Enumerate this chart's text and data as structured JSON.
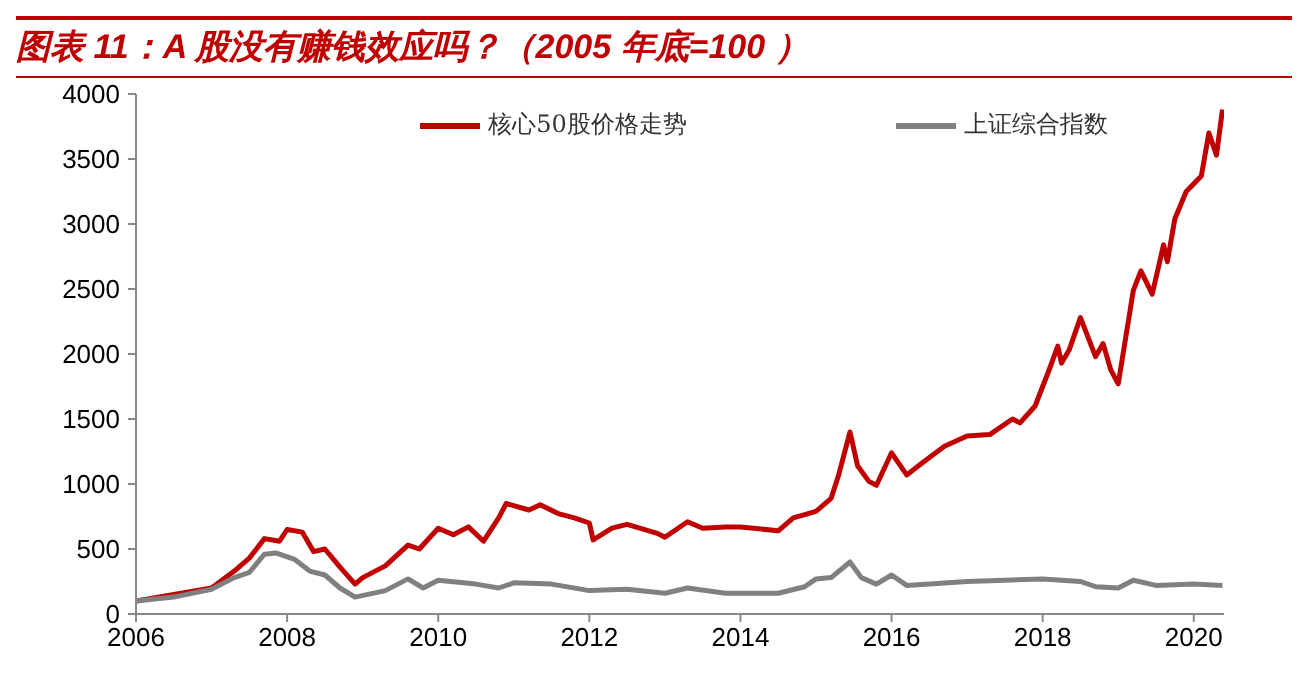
{
  "chart_data": {
    "type": "line",
    "title": "图表 11：A 股没有赚钱效应吗？（2005 年底=100 ）",
    "xlim": [
      2006,
      2020.4
    ],
    "xticks": [
      2006,
      2008,
      2010,
      2012,
      2014,
      2016,
      2018,
      2020
    ],
    "ylim": [
      0,
      4000
    ],
    "yticks": [
      0,
      500,
      1000,
      1500,
      2000,
      2500,
      3000,
      3500,
      4000
    ],
    "legend": "top",
    "grid": false,
    "marker": "none",
    "line_style": "solid",
    "series": [
      {
        "name": "核心50股价格走势",
        "color": "#c00000",
        "x": [
          2006,
          2006.5,
          2007,
          2007.3,
          2007.5,
          2007.7,
          2007.9,
          2008,
          2008.2,
          2008.35,
          2008.5,
          2008.7,
          2008.9,
          2009,
          2009.3,
          2009.6,
          2009.75,
          2010,
          2010.2,
          2010.4,
          2010.6,
          2010.8,
          2010.9,
          2011.2,
          2011.35,
          2011.6,
          2011.8,
          2012,
          2012.05,
          2012.3,
          2012.5,
          2012.9,
          2013,
          2013.3,
          2013.5,
          2013.8,
          2014,
          2014.5,
          2014.7,
          2015,
          2015.2,
          2015.3,
          2015.45,
          2015.55,
          2015.7,
          2015.8,
          2016,
          2016.2,
          2016.4,
          2016.7,
          2017,
          2017.3,
          2017.6,
          2017.7,
          2017.9,
          2018.1,
          2018.2,
          2018.25,
          2018.35,
          2018.5,
          2018.7,
          2018.8,
          2018.9,
          2019,
          2019.2,
          2019.3,
          2019.45,
          2019.6,
          2019.65,
          2019.75,
          2019.9,
          2020.1,
          2020.2,
          2020.3,
          2020.38
        ],
        "values": [
          100,
          150,
          200,
          330,
          430,
          580,
          560,
          650,
          630,
          480,
          500,
          360,
          230,
          280,
          370,
          530,
          500,
          660,
          610,
          670,
          560,
          740,
          850,
          800,
          840,
          770,
          740,
          700,
          570,
          660,
          690,
          620,
          590,
          710,
          660,
          670,
          670,
          640,
          740,
          790,
          890,
          1070,
          1400,
          1140,
          1020,
          990,
          1240,
          1070,
          1160,
          1290,
          1370,
          1380,
          1500,
          1470,
          1600,
          1900,
          2060,
          1930,
          2030,
          2280,
          1980,
          2080,
          1880,
          1770,
          2490,
          2640,
          2460,
          2840,
          2710,
          3040,
          3250,
          3370,
          3700,
          3530,
          3880
        ]
      },
      {
        "name": "上证综合指数",
        "color": "#808080",
        "x": [
          2006,
          2006.5,
          2007,
          2007.3,
          2007.5,
          2007.7,
          2007.85,
          2008.1,
          2008.3,
          2008.5,
          2008.7,
          2008.9,
          2009.3,
          2009.6,
          2009.8,
          2010,
          2010.5,
          2010.8,
          2011,
          2011.5,
          2012,
          2012.5,
          2013,
          2013.3,
          2013.8,
          2014,
          2014.5,
          2014.85,
          2015,
          2015.2,
          2015.45,
          2015.6,
          2015.8,
          2016,
          2016.2,
          2016.5,
          2017,
          2017.5,
          2018,
          2018.5,
          2018.7,
          2019,
          2019.2,
          2019.5,
          2020,
          2020.38
        ],
        "values": [
          100,
          130,
          190,
          280,
          320,
          460,
          470,
          420,
          330,
          300,
          200,
          130,
          180,
          270,
          200,
          260,
          230,
          200,
          240,
          230,
          180,
          190,
          160,
          200,
          160,
          160,
          160,
          210,
          270,
          280,
          400,
          280,
          230,
          300,
          220,
          230,
          250,
          260,
          270,
          250,
          210,
          200,
          260,
          220,
          230,
          220
        ]
      }
    ]
  }
}
